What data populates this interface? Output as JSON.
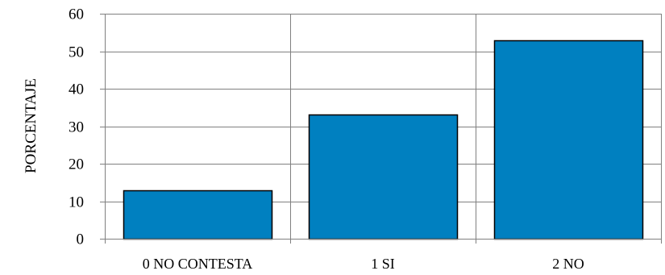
{
  "chart_data": {
    "type": "bar",
    "categories": [
      "0 NO CONTESTA",
      "1 SI",
      "2 NO"
    ],
    "values": [
      12.8,
      33.2,
      52.9
    ],
    "ylabel": "PORCENTAJE",
    "ylim": [
      0,
      60
    ],
    "yticks": [
      0,
      10,
      20,
      30,
      40,
      50,
      60
    ],
    "grid": true,
    "legend": "none",
    "colors": {
      "bar": "#0080C0",
      "bar_border": "#000000",
      "grid": "#808080",
      "axis": "#808080",
      "plot_background": "#FFFFFF"
    }
  }
}
